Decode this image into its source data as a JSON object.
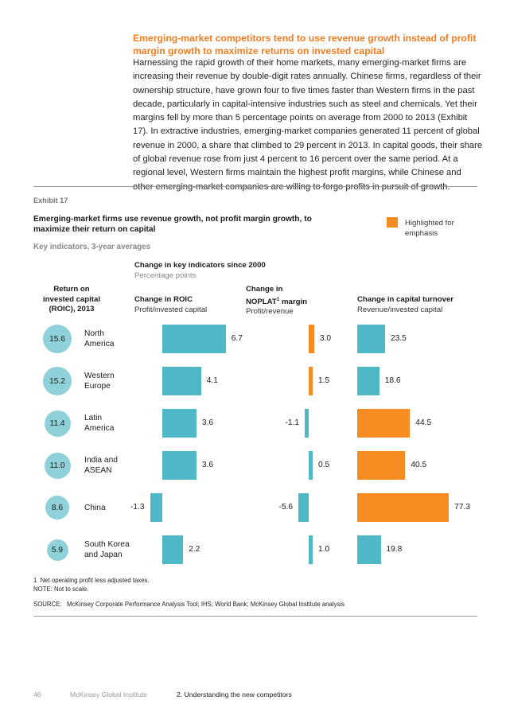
{
  "heading": "Emerging-market competitors tend to use revenue growth instead of profit margin growth to maximize returns on invested capital",
  "body": "Harnessing the rapid growth of their home markets, many emerging-market firms are increasing their revenue by double-digit rates annually. Chinese firms, regardless of their ownership structure, have grown four to five times faster than Western firms in the past decade, particularly in capital-intensive industries such as steel and chemicals. Yet their margins fell by more than 5 percentage points on average from 2000 to 2013 (Exhibit 17). In extractive industries, emerging-market companies generated 11 percent of global revenue in 2000, a share that climbed to 29 percent in 2013. In capital goods, their share of global revenue rose from just 4 percent to 16 percent over the same period. At a regional level, Western firms maintain the highest profit margins, while Chinese and other emerging-market companies are willing to forgo profits in pursuit of growth.",
  "exhibit": {
    "label": "Exhibit 17",
    "title": "Emerging-market firms use revenue growth, not profit margin growth, to maximize their return on capital",
    "subtitle": "Key indicators, 3-year averages",
    "legend_text": "Highlighted for emphasis",
    "legend_color": "#f68b1f",
    "bar_color": "#4fb8c6",
    "circle_color": "#8fd1d8",
    "change_title": "Change in key indicators since 2000",
    "change_sub": "Percentage points",
    "roic_header": [
      "Return on",
      "invested capital",
      "(ROIC), 2013"
    ],
    "col1": {
      "title": "Change in ROIC",
      "sub": "Profit/invested capital"
    },
    "col2": {
      "title_pre": "Change in",
      "title_main": "NOPLAT",
      "title_sup": "1",
      "title_post": " margin",
      "sub": "Profit/revenue"
    },
    "col3": {
      "title": "Change in capital turnover",
      "sub": "Revenue/invested capital"
    }
  },
  "chart_data": {
    "type": "bar",
    "categories": [
      "North America",
      "Western Europe",
      "Latin America",
      "India and ASEAN",
      "China",
      "South Korea and Japan"
    ],
    "category_lines": [
      [
        "North",
        "America"
      ],
      [
        "Western",
        "Europe"
      ],
      [
        "Latin",
        "America"
      ],
      [
        "India and",
        "ASEAN"
      ],
      [
        "China"
      ],
      [
        "South Korea",
        "and Japan"
      ]
    ],
    "roic_2013": [
      "15.6",
      "15.2",
      "11.4",
      "11.0",
      "8.6",
      "5.9"
    ],
    "series": [
      {
        "name": "Change in ROIC",
        "values": [
          6.7,
          4.1,
          3.6,
          3.6,
          -1.3,
          2.2
        ],
        "labels": [
          "6.7",
          "4.1",
          "3.6",
          "3.6",
          "-1.3",
          "2.2"
        ],
        "highlight": [
          false,
          false,
          false,
          false,
          false,
          false
        ]
      },
      {
        "name": "Change in NOPLAT margin",
        "values": [
          3.0,
          1.5,
          -1.1,
          0.5,
          -5.6,
          1.0
        ],
        "labels": [
          "3.0",
          "1.5",
          "-1.1",
          "0.5",
          "-5.6",
          "1.0"
        ],
        "highlight": [
          true,
          true,
          false,
          false,
          false,
          false
        ]
      },
      {
        "name": "Change in capital turnover",
        "values": [
          23.5,
          18.6,
          44.5,
          40.5,
          77.3,
          19.8
        ],
        "labels": [
          "23.5",
          "18.6",
          "44.5",
          "40.5",
          "77.3",
          "19.8"
        ],
        "highlight": [
          false,
          false,
          true,
          true,
          true,
          false
        ]
      }
    ]
  },
  "footnote1": "1  Net operating profit less adjusted taxes.",
  "note": "NOTE: Not to scale.",
  "source": "SOURCE:   McKinsey Corporate Performance Analysis Tool; IHS; World Bank; McKinsey Global Institute analysis",
  "footer": {
    "page": "46",
    "publisher": "McKinsey Global Institute",
    "chapter": "2. Understanding the new competitors"
  }
}
